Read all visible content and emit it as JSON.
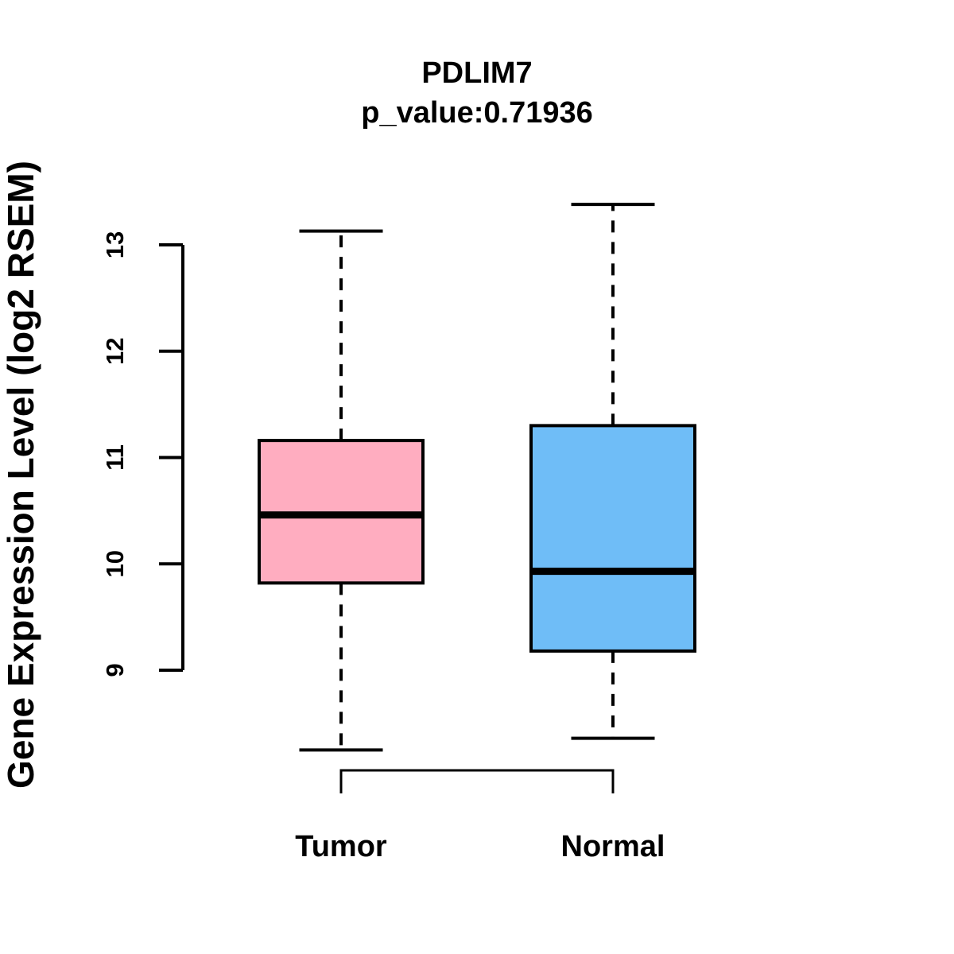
{
  "header": {
    "title": "PDLIM7",
    "subtitle": "p_value:0.71936",
    "p_value": 0.71936
  },
  "colors": {
    "tumor_fill": "#FFADC0",
    "normal_fill": "#6FBDF7",
    "line": "#000000",
    "background": "#FFFFFF"
  },
  "chart_data": {
    "type": "boxplot",
    "title": "PDLIM7",
    "subtitle": "p_value:0.71936",
    "ylabel": "Gene Expression Level (log2 RSEM)",
    "xlabel": "",
    "categories": [
      "Tumor",
      "Normal"
    ],
    "series": [
      {
        "name": "Tumor",
        "whisker_low": 8.25,
        "q1": 9.82,
        "median": 10.46,
        "q3": 11.16,
        "whisker_high": 13.13,
        "fill": "#FFADC0"
      },
      {
        "name": "Normal",
        "whisker_low": 8.36,
        "q1": 9.18,
        "median": 9.93,
        "q3": 11.3,
        "whisker_high": 13.38,
        "fill": "#6FBDF7"
      }
    ],
    "yticks": [
      9,
      10,
      11,
      12,
      13
    ],
    "ytick_labels": [
      "9",
      "10",
      "11",
      "12",
      "13"
    ],
    "ylim": [
      8.1,
      13.6
    ],
    "grid": false,
    "legend": null,
    "orientation": "vertical",
    "outliers": []
  }
}
